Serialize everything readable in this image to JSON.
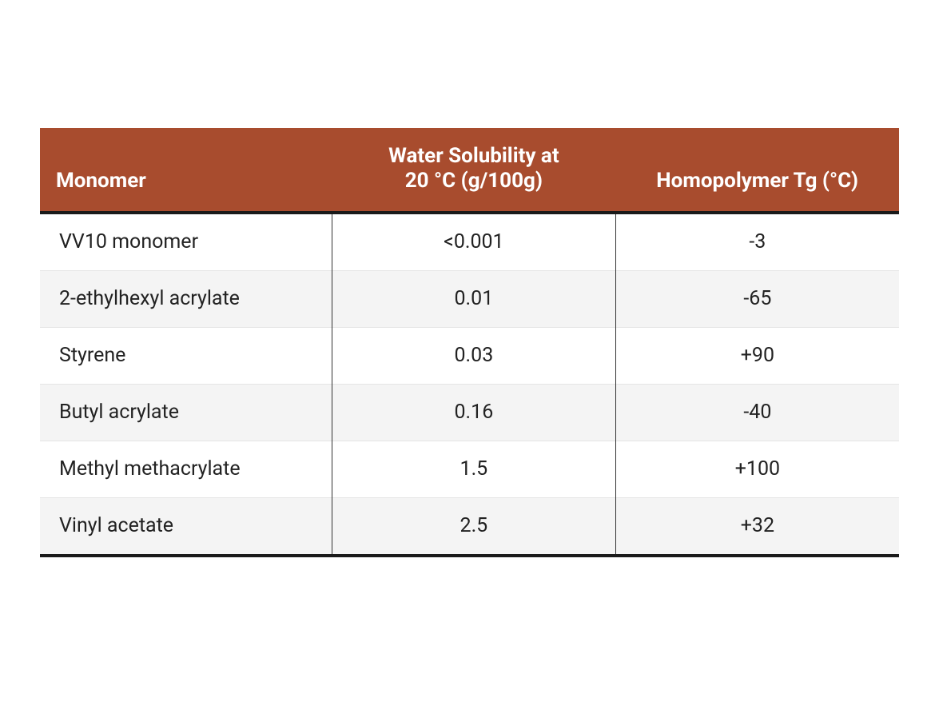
{
  "table": {
    "type": "table",
    "header_bg": "#a84c2e",
    "header_text_color": "#ffffff",
    "header_font_weight": 700,
    "header_fontsize_pt": 20,
    "body_fontsize_pt": 19,
    "body_text_color": "#222222",
    "row_bg_odd": "#ffffff",
    "row_bg_even": "#f4f4f4",
    "rule_color": "#1a1a1a",
    "row_divider_color": "#e5e5e5",
    "inner_vline_color": "#333333",
    "background_color": "#ffffff",
    "column_widths_pct": [
      34,
      33,
      33
    ],
    "column_align": [
      "left",
      "center",
      "center"
    ],
    "columns": {
      "monomer": "Monomer",
      "solubility_line1": "Water Solubility at",
      "solubility_line2": "20 °C (g/100g)",
      "tg": "Homopolymer Tg (°C)"
    },
    "rows": [
      {
        "monomer": "VV10 monomer",
        "solubility": "<0.001",
        "tg": "-3"
      },
      {
        "monomer": "2-ethylhexyl acrylate",
        "solubility": "0.01",
        "tg": "-65"
      },
      {
        "monomer": "Styrene",
        "solubility": "0.03",
        "tg": "+90"
      },
      {
        "monomer": "Butyl acrylate",
        "solubility": "0.16",
        "tg": "-40"
      },
      {
        "monomer": "Methyl methacrylate",
        "solubility": "1.5",
        "tg": "+100"
      },
      {
        "monomer": "Vinyl acetate",
        "solubility": "2.5",
        "tg": "+32"
      }
    ]
  }
}
